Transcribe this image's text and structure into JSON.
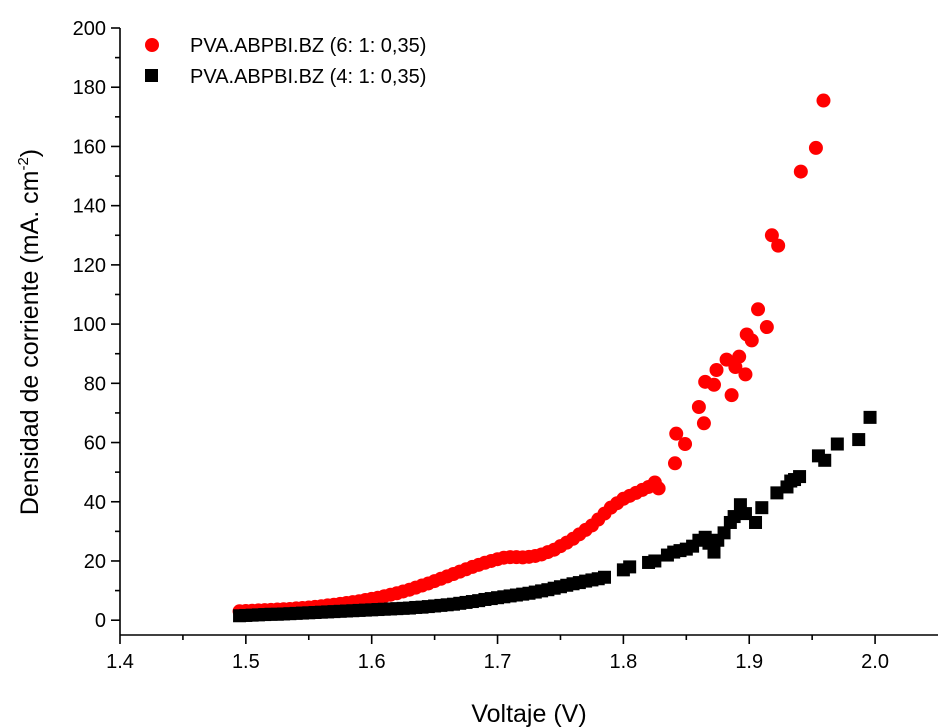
{
  "chart_data": {
    "type": "scatter",
    "title": "",
    "xlabel": "Voltaje (V)",
    "ylabel_main": "Densidad de corriente (mA. cm",
    "ylabel_sup": "-2",
    "ylabel_close": ")",
    "xlim": [
      1.4,
      2.05
    ],
    "ylim": [
      -5,
      200
    ],
    "x_ticks": [
      {
        "value": 1.4,
        "label": "1.4"
      },
      {
        "value": 1.5,
        "label": "1.5"
      },
      {
        "value": 1.6,
        "label": "1.6"
      },
      {
        "value": 1.7,
        "label": "1.7"
      },
      {
        "value": 1.8,
        "label": "1.8"
      },
      {
        "value": 1.9,
        "label": "1.9"
      },
      {
        "value": 2.0,
        "label": "2.0"
      }
    ],
    "x_minor_ticks": [
      1.45,
      1.55,
      1.65,
      1.75,
      1.85,
      1.95
    ],
    "y_ticks": [
      {
        "value": 0,
        "label": "0"
      },
      {
        "value": 20,
        "label": "20"
      },
      {
        "value": 40,
        "label": "40"
      },
      {
        "value": 60,
        "label": "60"
      },
      {
        "value": 80,
        "label": "80"
      },
      {
        "value": 100,
        "label": "100"
      },
      {
        "value": 120,
        "label": "120"
      },
      {
        "value": 140,
        "label": "140"
      },
      {
        "value": 160,
        "label": "160"
      },
      {
        "value": 180,
        "label": "180"
      },
      {
        "value": 200,
        "label": "200"
      }
    ],
    "y_minor_ticks": [
      10,
      30,
      50,
      70,
      90,
      110,
      130,
      150,
      170,
      190
    ],
    "grid": false,
    "legend_position": "top-left",
    "series": [
      {
        "name": "PVA.ABPBI.BZ (6: 1: 0,35)",
        "marker": "circle",
        "color": "#ff0000",
        "points": [
          [
            1.495,
            3.0
          ],
          [
            1.5,
            3.1
          ],
          [
            1.505,
            3.2
          ],
          [
            1.51,
            3.3
          ],
          [
            1.515,
            3.4
          ],
          [
            1.52,
            3.5
          ],
          [
            1.525,
            3.6
          ],
          [
            1.53,
            3.7
          ],
          [
            1.535,
            3.8
          ],
          [
            1.54,
            4.0
          ],
          [
            1.545,
            4.1
          ],
          [
            1.55,
            4.3
          ],
          [
            1.555,
            4.5
          ],
          [
            1.56,
            4.7
          ],
          [
            1.565,
            5.0
          ],
          [
            1.57,
            5.2
          ],
          [
            1.575,
            5.5
          ],
          [
            1.58,
            5.8
          ],
          [
            1.585,
            6.1
          ],
          [
            1.59,
            6.4
          ],
          [
            1.595,
            6.8
          ],
          [
            1.6,
            7.2
          ],
          [
            1.605,
            7.6
          ],
          [
            1.61,
            8.1
          ],
          [
            1.615,
            8.6
          ],
          [
            1.62,
            9.1
          ],
          [
            1.625,
            9.7
          ],
          [
            1.63,
            10.3
          ],
          [
            1.635,
            11.0
          ],
          [
            1.64,
            11.7
          ],
          [
            1.645,
            12.4
          ],
          [
            1.65,
            13.2
          ],
          [
            1.655,
            14.0
          ],
          [
            1.66,
            14.8
          ],
          [
            1.665,
            15.6
          ],
          [
            1.67,
            16.4
          ],
          [
            1.675,
            17.2
          ],
          [
            1.68,
            18.0
          ],
          [
            1.685,
            18.7
          ],
          [
            1.69,
            19.4
          ],
          [
            1.695,
            20.0
          ],
          [
            1.7,
            20.6
          ],
          [
            1.705,
            21.1
          ],
          [
            1.71,
            21.3
          ],
          [
            1.715,
            21.3
          ],
          [
            1.72,
            21.2
          ],
          [
            1.725,
            21.4
          ],
          [
            1.73,
            21.7
          ],
          [
            1.735,
            22.2
          ],
          [
            1.74,
            23.0
          ],
          [
            1.745,
            23.8
          ],
          [
            1.75,
            25.0
          ],
          [
            1.755,
            26.2
          ],
          [
            1.76,
            27.5
          ],
          [
            1.765,
            29.0
          ],
          [
            1.77,
            30.5
          ],
          [
            1.775,
            32.0
          ],
          [
            1.78,
            34.0
          ],
          [
            1.785,
            36.0
          ],
          [
            1.79,
            38.0
          ],
          [
            1.795,
            39.5
          ],
          [
            1.8,
            41.0
          ],
          [
            1.805,
            42.0
          ],
          [
            1.81,
            43.0
          ],
          [
            1.815,
            44.0
          ],
          [
            1.82,
            45.0
          ],
          [
            1.825,
            46.5
          ],
          [
            1.828,
            44.5
          ],
          [
            1.842,
            63.0
          ],
          [
            1.841,
            53.0
          ],
          [
            1.849,
            59.5
          ],
          [
            1.86,
            72.0
          ],
          [
            1.865,
            80.5
          ],
          [
            1.864,
            66.5
          ],
          [
            1.872,
            79.5
          ],
          [
            1.874,
            84.5
          ],
          [
            1.882,
            88.0
          ],
          [
            1.886,
            76.0
          ],
          [
            1.889,
            85.5
          ],
          [
            1.892,
            89.0
          ],
          [
            1.897,
            83.0
          ],
          [
            1.898,
            96.5
          ],
          [
            1.902,
            94.5
          ],
          [
            1.907,
            105.0
          ],
          [
            1.914,
            99.0
          ],
          [
            1.918,
            130.0
          ],
          [
            1.923,
            126.5
          ],
          [
            1.941,
            151.5
          ],
          [
            1.953,
            159.5
          ],
          [
            1.959,
            175.5
          ]
        ]
      },
      {
        "name": "PVA.ABPBI.BZ (4: 1: 0,35)",
        "marker": "square",
        "color": "#000000",
        "points": [
          [
            1.495,
            1.5
          ],
          [
            1.5,
            1.6
          ],
          [
            1.505,
            1.7
          ],
          [
            1.51,
            1.8
          ],
          [
            1.515,
            1.9
          ],
          [
            1.52,
            2.0
          ],
          [
            1.525,
            2.0
          ],
          [
            1.53,
            2.1
          ],
          [
            1.535,
            2.2
          ],
          [
            1.54,
            2.3
          ],
          [
            1.545,
            2.4
          ],
          [
            1.55,
            2.5
          ],
          [
            1.555,
            2.6
          ],
          [
            1.56,
            2.7
          ],
          [
            1.565,
            2.8
          ],
          [
            1.57,
            2.9
          ],
          [
            1.575,
            3.0
          ],
          [
            1.58,
            3.1
          ],
          [
            1.585,
            3.2
          ],
          [
            1.59,
            3.3
          ],
          [
            1.595,
            3.4
          ],
          [
            1.6,
            3.5
          ],
          [
            1.605,
            3.6
          ],
          [
            1.61,
            3.7
          ],
          [
            1.615,
            3.8
          ],
          [
            1.62,
            3.9
          ],
          [
            1.625,
            4.0
          ],
          [
            1.63,
            4.1
          ],
          [
            1.635,
            4.3
          ],
          [
            1.64,
            4.4
          ],
          [
            1.645,
            4.6
          ],
          [
            1.65,
            4.8
          ],
          [
            1.655,
            5.0
          ],
          [
            1.66,
            5.2
          ],
          [
            1.665,
            5.4
          ],
          [
            1.67,
            5.7
          ],
          [
            1.675,
            6.0
          ],
          [
            1.68,
            6.3
          ],
          [
            1.685,
            6.6
          ],
          [
            1.69,
            7.0
          ],
          [
            1.695,
            7.3
          ],
          [
            1.7,
            7.6
          ],
          [
            1.705,
            7.9
          ],
          [
            1.71,
            8.2
          ],
          [
            1.715,
            8.5
          ],
          [
            1.72,
            8.8
          ],
          [
            1.725,
            9.1
          ],
          [
            1.73,
            9.5
          ],
          [
            1.735,
            9.9
          ],
          [
            1.74,
            10.3
          ],
          [
            1.745,
            10.8
          ],
          [
            1.75,
            11.3
          ],
          [
            1.755,
            11.8
          ],
          [
            1.76,
            12.3
          ],
          [
            1.765,
            12.7
          ],
          [
            1.77,
            13.2
          ],
          [
            1.775,
            13.6
          ],
          [
            1.78,
            14.0
          ],
          [
            1.785,
            14.5
          ],
          [
            1.8,
            17.0
          ],
          [
            1.805,
            18.0
          ],
          [
            1.82,
            19.5
          ],
          [
            1.825,
            20.0
          ],
          [
            1.835,
            22.0
          ],
          [
            1.84,
            23.0
          ],
          [
            1.845,
            23.5
          ],
          [
            1.85,
            24.0
          ],
          [
            1.855,
            25.0
          ],
          [
            1.86,
            27.0
          ],
          [
            1.865,
            28.0
          ],
          [
            1.868,
            26.0
          ],
          [
            1.872,
            23.0
          ],
          [
            1.875,
            27.0
          ],
          [
            1.88,
            29.5
          ],
          [
            1.885,
            33.0
          ],
          [
            1.888,
            35.0
          ],
          [
            1.893,
            39.0
          ],
          [
            1.897,
            36.0
          ],
          [
            1.905,
            33.0
          ],
          [
            1.91,
            38.0
          ],
          [
            1.922,
            43.0
          ],
          [
            1.93,
            45.0
          ],
          [
            1.933,
            47.0
          ],
          [
            1.936,
            47.5
          ],
          [
            1.94,
            48.5
          ],
          [
            1.955,
            55.5
          ],
          [
            1.96,
            54.0
          ],
          [
            1.97,
            59.5
          ],
          [
            1.987,
            61.0
          ],
          [
            1.996,
            68.5
          ]
        ]
      }
    ]
  }
}
